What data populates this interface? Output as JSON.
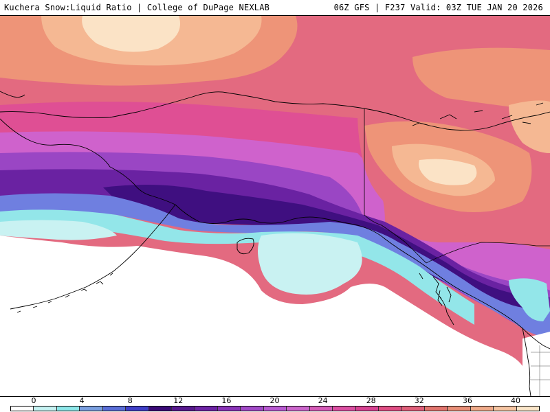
{
  "header": {
    "title": "Kuchera Snow:Liquid Ratio | College of DuPage NEXLAB",
    "run_info": "06Z GFS | F237 Valid: 03Z TUE JAN 20 2026"
  },
  "legend": {
    "ticks": [
      "0",
      "4",
      "8",
      "12",
      "16",
      "20",
      "24",
      "28",
      "32",
      "36",
      "40"
    ],
    "colors": [
      "#ffffff",
      "#c6f3f3",
      "#8ee8ea",
      "#7a9fe0",
      "#5a6ed8",
      "#3f3fc8",
      "#3b0a78",
      "#57188e",
      "#6e24a6",
      "#8a34b8",
      "#a24ac8",
      "#b95ad2",
      "#cc66cc",
      "#d65cb8",
      "#dc4fa2",
      "#d84292",
      "#e04e84",
      "#e05f7a",
      "#e2756e",
      "#e98f78",
      "#f0ab8a",
      "#f6c5a2",
      "#fbe6c9"
    ]
  },
  "map": {
    "region": "Alaska and Gulf of Alaska",
    "palette": {
      "ocean": "#ffffff",
      "cyan_light": "#c9f2f2",
      "cyan": "#93e6e9",
      "blue": "#6f7fe0",
      "deep_purple": "#3f0f80",
      "purple": "#6a22a2",
      "violet": "#9a46c4",
      "magenta": "#cf62cc",
      "pink": "#df4f94",
      "rose": "#e36a80",
      "salmon": "#ee9478",
      "peach": "#f5b893",
      "cream": "#fbe3c6",
      "coastline": "#000000"
    }
  }
}
